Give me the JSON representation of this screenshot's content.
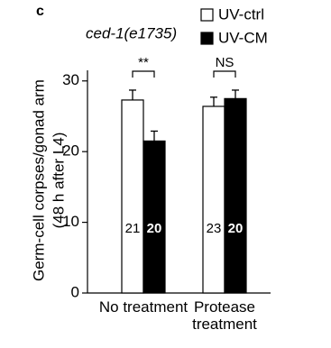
{
  "panel": "c",
  "chart_data": {
    "type": "bar",
    "title": "ced-1(e1735)",
    "y_label": [
      "Germ-cell corpses/gonad arm",
      "(48 h after L4)"
    ],
    "categories": [
      "No treatment",
      "Protease treatment"
    ],
    "significance": [
      "**",
      "NS"
    ],
    "series": [
      {
        "name": "UV-ctrl",
        "color": "#ffffff",
        "values": [
          27.3,
          26.4
        ],
        "errors": [
          1.4,
          1.3
        ],
        "n": [
          21,
          23
        ]
      },
      {
        "name": "UV-CM",
        "color": "#000000",
        "values": [
          21.5,
          27.5
        ],
        "errors": [
          1.4,
          1.2
        ],
        "n": [
          20,
          20
        ]
      }
    ],
    "ylim": [
      0,
      31.5
    ],
    "yticks": [
      0,
      10,
      20,
      30
    ],
    "legend": "top-right"
  }
}
